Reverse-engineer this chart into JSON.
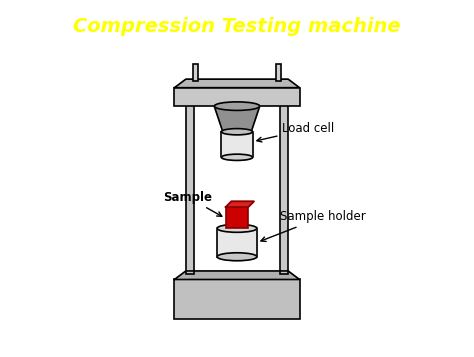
{
  "title": "Compression Testing machine",
  "title_bg": "#1414FF",
  "title_color": "#FFFF00",
  "bg_color": "#FFFFFF",
  "machine_color": "#C8C8C8",
  "machine_edge": "#000000",
  "load_cell_top_color": "#A0A0A0",
  "load_cell_bottom_color": "#E0E0E0",
  "sample_color": "#CC0000",
  "sample_holder_color": "#E0E0E0",
  "base_color": "#C0C0C0",
  "label_load_cell": "Load cell",
  "label_sample": "Sample",
  "label_sample_holder": "Sample holder"
}
